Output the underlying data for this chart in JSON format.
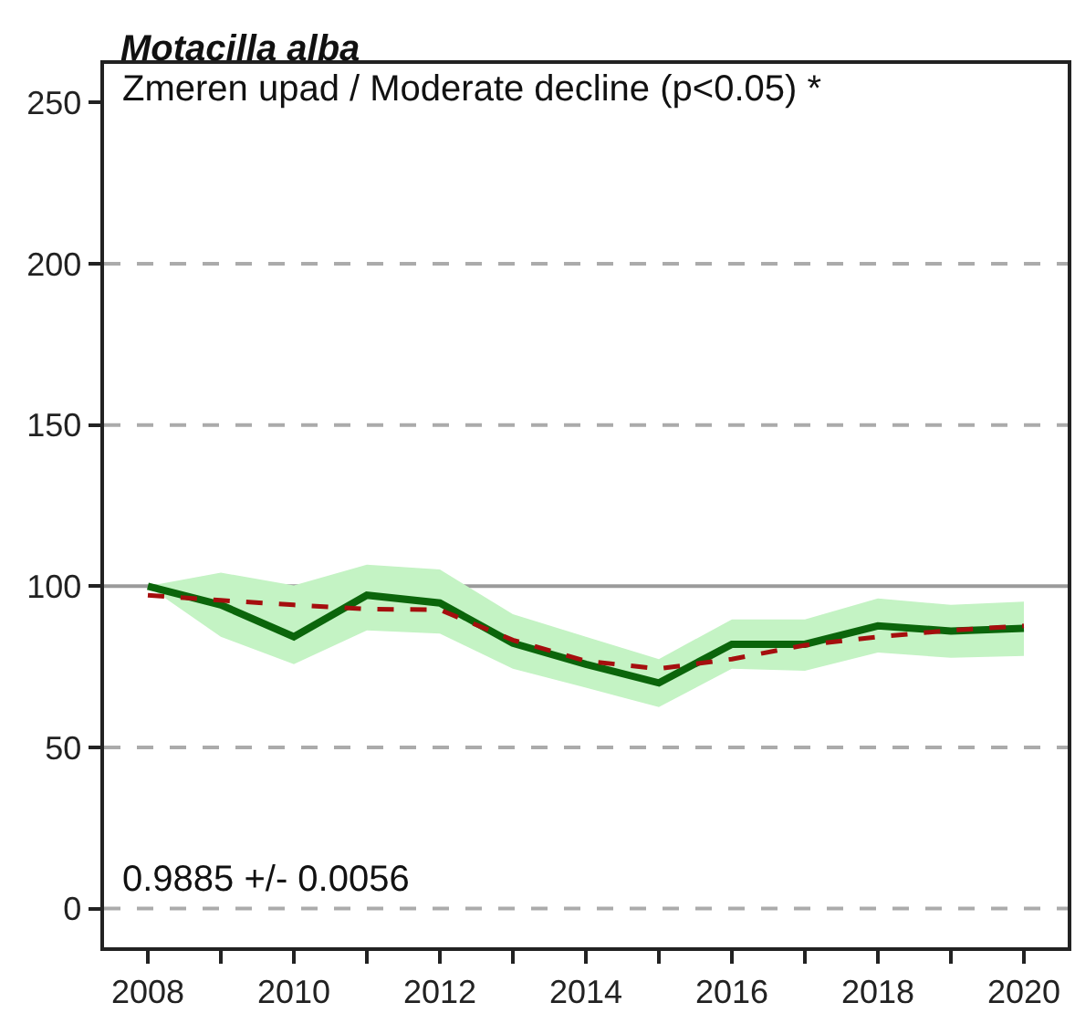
{
  "chart_data": {
    "type": "line",
    "title": "Motacilla alba",
    "annotations": [
      "Zmeren upad / Moderate decline (p<0.05) *",
      "0.9885 +/- 0.0056"
    ],
    "x": [
      2008,
      2009,
      2010,
      2011,
      2012,
      2013,
      2014,
      2015,
      2016,
      2017,
      2018,
      2019,
      2020
    ],
    "series": [
      {
        "color": "#0b650b",
        "line_style": "solid",
        "values": [
          100,
          94.2,
          84.3,
          97.2,
          94.8,
          82.3,
          75.8,
          70.0,
          82.0,
          82.0,
          87.7,
          86.1,
          86.9
        ],
        "lower": [
          100,
          84.3,
          75.8,
          86.3,
          85.3,
          74.4,
          68.5,
          62.5,
          74.4,
          73.8,
          79.4,
          77.8,
          78.4
        ],
        "upper": [
          100,
          104.2,
          100.2,
          106.7,
          105.2,
          91.3,
          84.3,
          77.4,
          89.7,
          89.7,
          96.2,
          94.2,
          95.2
        ]
      },
      {
        "color": "#a50e0e",
        "line_style": "dashed",
        "values": [
          97.2,
          95.6,
          94.2,
          92.9,
          92.7,
          83.3,
          76.8,
          74.4,
          77.4,
          81.7,
          84.3,
          86.3,
          87.7
        ]
      }
    ],
    "xlim": [
      2007.4,
      2020.6
    ],
    "ylim": [
      -12,
      262
    ],
    "xticks": [
      2008,
      {
        "value": 2009,
        "label": null
      },
      2010,
      {
        "value": 2011,
        "label": null
      },
      2012,
      {
        "value": 2013,
        "label": null
      },
      2014,
      {
        "value": 2015,
        "label": null
      },
      2016,
      {
        "value": 2017,
        "label": null
      },
      2018,
      {
        "value": 2019,
        "label": null
      },
      2020
    ],
    "yticks": [
      0,
      50,
      100,
      150,
      200,
      250
    ],
    "ref_lines": [
      {
        "axis": "y",
        "value": 0,
        "line_style": "dashed",
        "color": "#ababab"
      },
      {
        "axis": "y",
        "value": 50,
        "line_style": "dashed",
        "color": "#ababab"
      },
      {
        "axis": "y",
        "value": 100,
        "line_style": "solid",
        "color": "#9a9a9a"
      },
      {
        "axis": "y",
        "value": 150,
        "line_style": "dashed",
        "color": "#ababab"
      },
      {
        "axis": "y",
        "value": 200,
        "line_style": "dashed",
        "color": "#ababab"
      }
    ],
    "grid": false,
    "marker": "none"
  }
}
